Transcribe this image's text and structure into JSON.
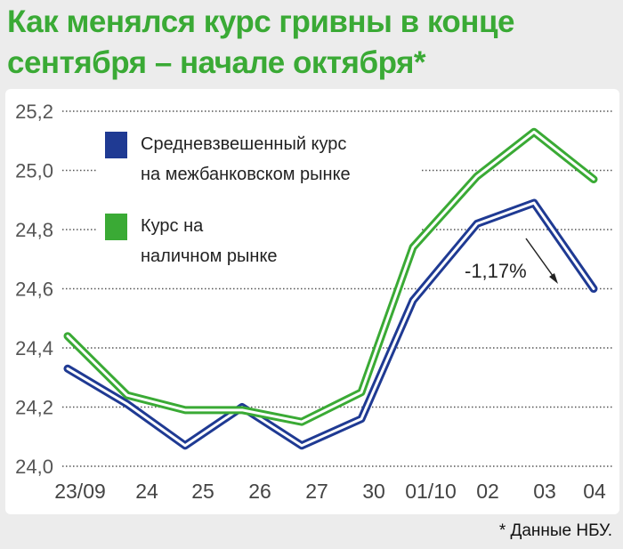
{
  "title_lines": [
    "Как менялся курс гривны в конце",
    "сентября – начале октября*"
  ],
  "footnote": "* Данные НБУ.",
  "chart_data": {
    "type": "line",
    "title": "Как менялся курс гривны в конце сентября – начале октября*",
    "categories": [
      "23/09",
      "24",
      "25",
      "26",
      "27",
      "30",
      "01/10",
      "02",
      "03",
      "04"
    ],
    "ylim": [
      24.0,
      25.2
    ],
    "yticks": [
      24.0,
      24.2,
      24.4,
      24.6,
      24.8,
      25.0,
      25.2
    ],
    "ytick_labels": [
      "24,0",
      "24,2",
      "24,4",
      "24,6",
      "24,8",
      "25,0",
      "25,2"
    ],
    "grid": true,
    "legend_position": "top-left",
    "series": [
      {
        "name": "Средневзвешенный курс на межбанковском рынке",
        "legend_lines": [
          "Средневзвешенный курс",
          "на межбанковском рынке"
        ],
        "color": "#1f3a93",
        "values": [
          24.33,
          24.21,
          24.07,
          24.2,
          24.07,
          24.16,
          24.56,
          24.82,
          24.89,
          24.6
        ]
      },
      {
        "name": "Курс на наличном рынке",
        "legend_lines": [
          "Курс на",
          "наличном рынке"
        ],
        "color": "#3aaa35",
        "values": [
          24.44,
          24.24,
          24.19,
          24.19,
          24.15,
          24.25,
          24.74,
          24.98,
          25.13,
          24.97
        ]
      }
    ],
    "annotation": "-1,17%"
  }
}
